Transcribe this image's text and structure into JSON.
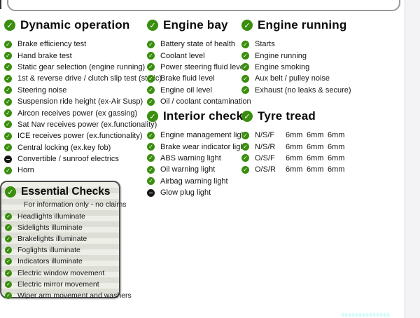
{
  "colors": {
    "check_green": "#3a8e0e",
    "na_black": "#161616",
    "essential_box_border": "#4d4d4d",
    "essential_box_bg": "#e4e6de"
  },
  "sections": {
    "dynamic_operation": {
      "title": "Dynamic operation",
      "items": [
        {
          "label": "Brake efficiency test",
          "status": "checked"
        },
        {
          "label": "Hand brake test",
          "status": "checked"
        },
        {
          "label": "Static gear selection (engine running)",
          "status": "checked"
        },
        {
          "label": "1st & reverse drive / clutch slip test (static)",
          "status": "checked"
        },
        {
          "label": "Steering noise",
          "status": "checked"
        },
        {
          "label": "Suspension ride height (ex-Air Susp)",
          "status": "checked"
        },
        {
          "label": "Aircon receives power (ex gassing)",
          "status": "checked"
        },
        {
          "label": "Sat Nav receives power (ex.functionality)",
          "status": "checked"
        },
        {
          "label": "ICE receives power (ex.functionality)",
          "status": "checked"
        },
        {
          "label": "Central locking (ex.key fob)",
          "status": "checked"
        },
        {
          "label": "Convertible / sunroof electrics",
          "status": "not_applicable"
        },
        {
          "label": "Horn",
          "status": "checked"
        }
      ]
    },
    "engine_bay": {
      "title": "Engine bay",
      "items": [
        {
          "label": "Battery state of health",
          "status": "checked"
        },
        {
          "label": "Coolant level",
          "status": "checked"
        },
        {
          "label": "Power steering fluid level",
          "status": "checked"
        },
        {
          "label": "Brake fluid level",
          "status": "checked"
        },
        {
          "label": "Engine oil level",
          "status": "checked"
        },
        {
          "label": "Oil / coolant contamination",
          "status": "checked"
        }
      ]
    },
    "engine_running": {
      "title": "Engine running",
      "items": [
        {
          "label": "Starts",
          "status": "checked"
        },
        {
          "label": "Engine running",
          "status": "checked"
        },
        {
          "label": "Engine smoking",
          "status": "checked"
        },
        {
          "label": "Aux belt / pulley noise",
          "status": "checked"
        },
        {
          "label": "Exhaust (no leaks & secure)",
          "status": "checked"
        }
      ]
    },
    "interior_checks": {
      "title": "Interior checks",
      "items": [
        {
          "label": "Engine management light",
          "status": "checked"
        },
        {
          "label": "Brake wear indicator light",
          "status": "checked"
        },
        {
          "label": "ABS warning light",
          "status": "checked"
        },
        {
          "label": "Oil warning light",
          "status": "checked"
        },
        {
          "label": "Airbag warning light",
          "status": "checked"
        },
        {
          "label": "Glow plug light",
          "status": "not_applicable"
        }
      ]
    },
    "tyre_tread": {
      "title": "Tyre tread",
      "rows": [
        {
          "label": "N/S/F",
          "status": "checked",
          "values": [
            "6mm",
            "6mm",
            "6mm"
          ]
        },
        {
          "label": "N/S/R",
          "status": "checked",
          "values": [
            "6mm",
            "6mm",
            "6mm"
          ]
        },
        {
          "label": "O/S/F",
          "status": "checked",
          "values": [
            "6mm",
            "6mm",
            "6mm"
          ]
        },
        {
          "label": "O/S/R",
          "status": "checked",
          "values": [
            "6mm",
            "6mm",
            "6mm"
          ]
        }
      ]
    },
    "essential_checks": {
      "title": "Essential Checks",
      "subtitle": "For information only - no claims",
      "items": [
        {
          "label": "Headlights illuminate",
          "status": "checked"
        },
        {
          "label": "Sidelights illuminate",
          "status": "checked"
        },
        {
          "label": "Brakelights illuminate",
          "status": "checked"
        },
        {
          "label": "Foglights illuminate",
          "status": "checked"
        },
        {
          "label": "Indicators illuminate",
          "status": "checked"
        },
        {
          "label": "Electric window movement",
          "status": "checked"
        },
        {
          "label": "Electric mirror movement",
          "status": "checked"
        },
        {
          "label": "Wiper arm movement and washers",
          "status": "checked"
        }
      ]
    }
  }
}
